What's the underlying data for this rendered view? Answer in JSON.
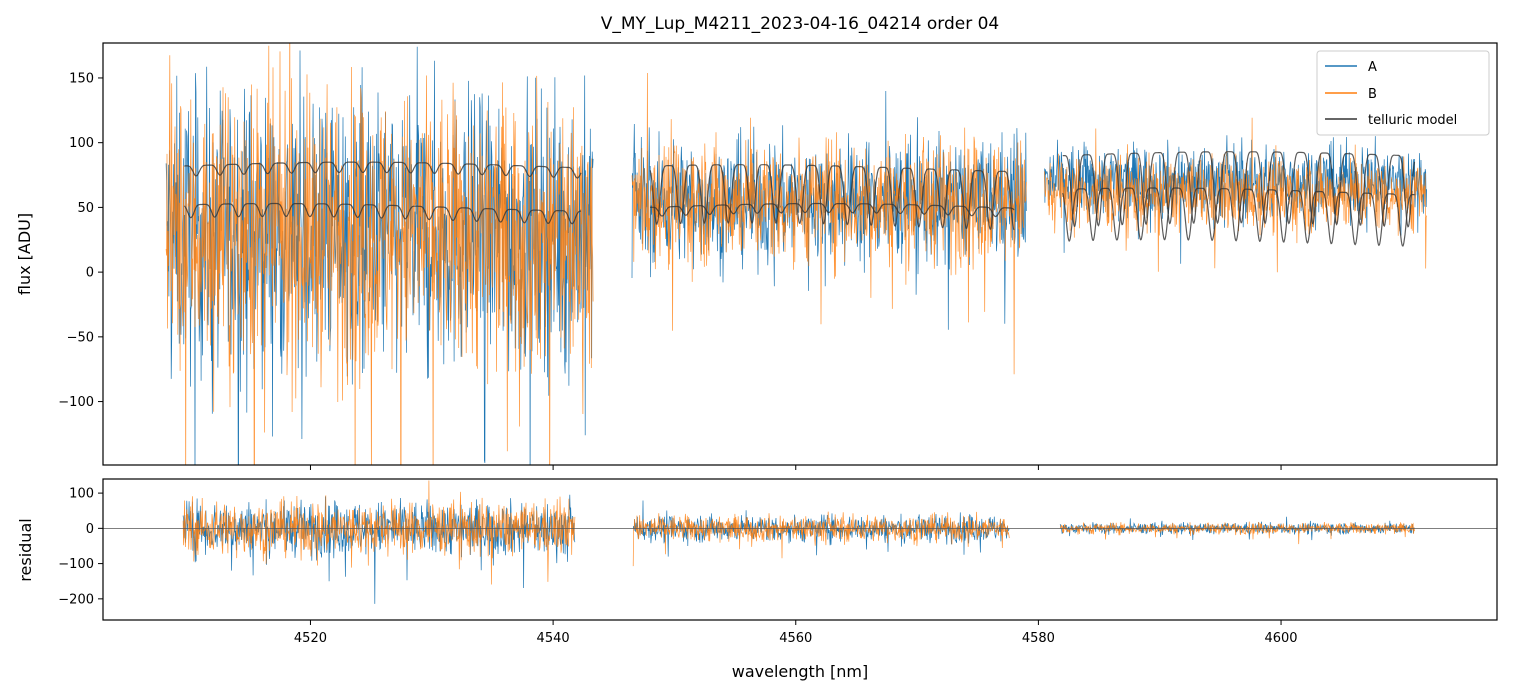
{
  "chart_data": {
    "type": "line",
    "title": "V_MY_Lup_M4211_2023-04-16_04214  order 04",
    "xlabel": "wavelength [nm]",
    "xlim": [
      4502.9,
      4617.8
    ],
    "x_ticks": [
      4520,
      4540,
      4560,
      4580,
      4600
    ],
    "x_tick_labels": [
      "4520",
      "4540",
      "4560",
      "4580",
      "4600"
    ],
    "legend": {
      "placement": "top-right",
      "entries": [
        {
          "label": "A",
          "color": "#1f77b4"
        },
        {
          "label": "B",
          "color": "#ff7f0e"
        },
        {
          "label": "telluric model",
          "color": "#333333"
        }
      ]
    },
    "panels": [
      {
        "name": "flux",
        "ylabel": "flux [ADU]",
        "ylim": [
          -149,
          177
        ],
        "y_ticks": [
          -100,
          -50,
          0,
          50,
          100,
          150
        ],
        "y_tick_labels": [
          "−100",
          "−50",
          "0",
          "50",
          "100",
          "150"
        ],
        "segments": [
          {
            "x_range": [
              4508.1,
              4543.3
            ],
            "A": {
              "center": 30,
              "spread": 170
            },
            "B": {
              "center": 30,
              "spread": 170
            },
            "telluric_model": [
              {
                "center": 82,
                "depth": 8
              },
              {
                "center": 50,
                "depth": 10
              }
            ]
          },
          {
            "x_range": [
              4546.5,
              4579.0
            ],
            "A": {
              "center": 55,
              "spread": 75
            },
            "B": {
              "center": 55,
              "spread": 75
            },
            "telluric_model": [
              {
                "center": 50,
                "depth": 7
              },
              {
                "center": 80,
                "depth": 45
              }
            ]
          },
          {
            "x_range": [
              4580.5,
              4612.0
            ],
            "A": {
              "center": 70,
              "spread": 45
            },
            "B": {
              "center": 60,
              "spread": 45
            },
            "telluric_model": [
              {
                "center": 90,
                "depth": 55
              },
              {
                "center": 62,
                "depth": 40
              }
            ]
          }
        ]
      },
      {
        "name": "residual",
        "ylabel": "residual",
        "ylim": [
          -260,
          140
        ],
        "y_ticks": [
          -200,
          -100,
          0,
          100
        ],
        "y_tick_labels": [
          "−200",
          "−100",
          "0",
          "100"
        ],
        "zero_line": true,
        "segments": [
          {
            "x_range": [
              4509.5,
              4541.8
            ],
            "spread": 120
          },
          {
            "x_range": [
              4546.6,
              4577.6
            ],
            "spread": 60
          },
          {
            "x_range": [
              4581.8,
              4611.0
            ],
            "spread": 25
          }
        ]
      }
    ]
  }
}
